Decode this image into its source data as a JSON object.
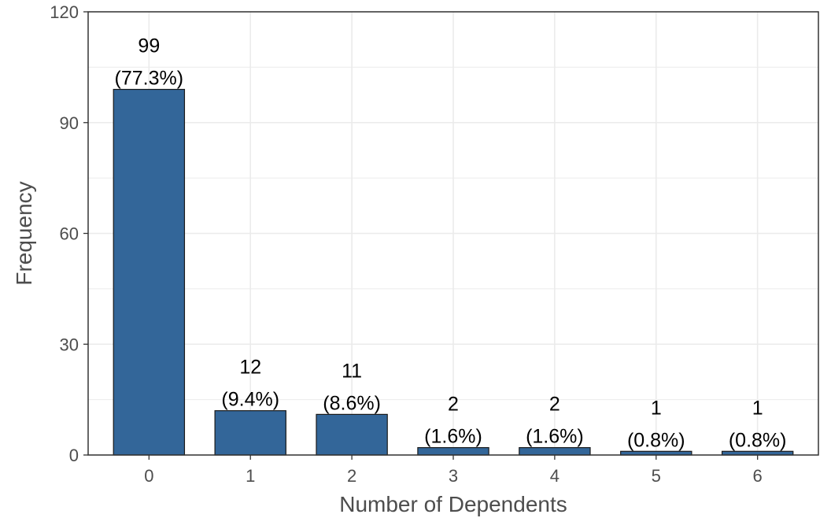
{
  "chart_data": {
    "type": "bar",
    "categories": [
      "0",
      "1",
      "2",
      "3",
      "4",
      "5",
      "6"
    ],
    "values": [
      99,
      12,
      11,
      2,
      2,
      1,
      1
    ],
    "count_labels": [
      "99",
      "12",
      "11",
      "2",
      "2",
      "1",
      "1"
    ],
    "percent_labels": [
      "(77.3%)",
      "(9.4%)",
      "(8.6%)",
      "(1.6%)",
      "(1.6%)",
      "(0.8%)",
      "(0.8%)"
    ],
    "xlabel": "Number of Dependents",
    "ylabel": "Frequency",
    "ylim": [
      0,
      120
    ],
    "yticks": [
      "0",
      "30",
      "60",
      "90",
      "120"
    ],
    "grid": true,
    "colors": {
      "bar_fill": "#336699",
      "bar_stroke": "#1a1a1a",
      "grid": "#ebebeb",
      "panel_border": "#333333",
      "axis_text": "#4d4d4d"
    }
  }
}
